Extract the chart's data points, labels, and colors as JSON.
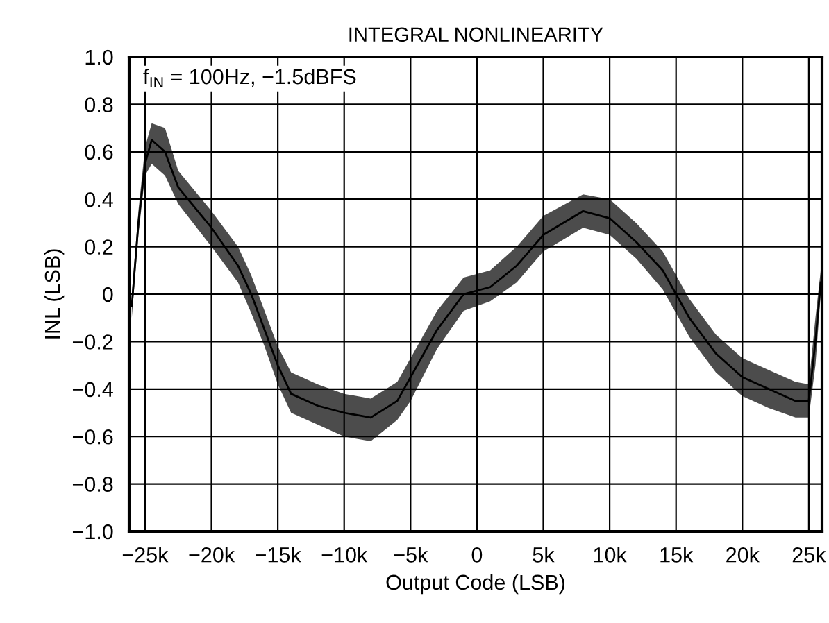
{
  "chart_data": {
    "type": "line",
    "title": "INTEGRAL NONLINEARITY",
    "xlabel": "Output Code (LSB)",
    "ylabel": "INL (LSB)",
    "annotations": [
      "f$_{IN}$ = 100Hz, −1.5dBFS"
    ],
    "series": [
      {
        "color": "#000000",
        "x": [
          -26000,
          -25500,
          -25000,
          -24500,
          -23500,
          -22500,
          -20000,
          -18000,
          -17000,
          -16000,
          -15000,
          -14000,
          -12000,
          -10000,
          -8000,
          -6000,
          -5000,
          -3000,
          -1000,
          1000,
          3000,
          5000,
          8000,
          10000,
          12000,
          14000,
          16000,
          18000,
          20000,
          22000,
          24000,
          25000,
          25500,
          25900
        ],
        "values": [
          -0.05,
          0.3,
          0.55,
          0.65,
          0.6,
          0.45,
          0.28,
          0.12,
          0.0,
          -0.15,
          -0.3,
          -0.42,
          -0.47,
          -0.5,
          -0.52,
          -0.45,
          -0.35,
          -0.15,
          0.0,
          0.03,
          0.12,
          0.25,
          0.35,
          0.32,
          0.22,
          0.1,
          -0.1,
          -0.25,
          -0.35,
          -0.4,
          -0.45,
          -0.45,
          -0.2,
          0.05
        ],
        "lower": [
          -0.1,
          0.25,
          0.5,
          0.55,
          0.5,
          0.38,
          0.2,
          0.05,
          -0.08,
          -0.22,
          -0.38,
          -0.5,
          -0.55,
          -0.6,
          -0.62,
          -0.53,
          -0.45,
          -0.23,
          -0.07,
          -0.03,
          0.05,
          0.18,
          0.28,
          0.25,
          0.15,
          0.02,
          -0.18,
          -0.33,
          -0.43,
          -0.48,
          -0.52,
          -0.52,
          -0.3,
          0.0
        ],
        "upper": [
          0.0,
          0.35,
          0.62,
          0.72,
          0.7,
          0.52,
          0.35,
          0.2,
          0.08,
          -0.07,
          -0.22,
          -0.33,
          -0.38,
          -0.42,
          -0.44,
          -0.37,
          -0.27,
          -0.07,
          0.07,
          0.1,
          0.2,
          0.33,
          0.42,
          0.4,
          0.3,
          0.18,
          -0.02,
          -0.17,
          -0.27,
          -0.32,
          -0.37,
          -0.38,
          -0.1,
          0.1
        ]
      }
    ],
    "xlim": [
      -26200,
      26000
    ],
    "ylim": [
      -1.0,
      1.0
    ],
    "xticks": [
      {
        "value": -25000,
        "label": "−25k"
      },
      {
        "value": -20000,
        "label": "−20k"
      },
      {
        "value": -15000,
        "label": "−15k"
      },
      {
        "value": -10000,
        "label": "−10k"
      },
      {
        "value": -5000,
        "label": "−5k"
      },
      0,
      {
        "value": 5000,
        "label": "5k"
      },
      {
        "value": 10000,
        "label": "10k"
      },
      {
        "value": 15000,
        "label": "15k"
      },
      {
        "value": 20000,
        "label": "20k"
      },
      {
        "value": 25000,
        "label": "25k"
      }
    ],
    "yticks": [
      {
        "value": 1.0,
        "label": "1.0"
      },
      0.8,
      0.6,
      0.4,
      0.2,
      0,
      {
        "value": -0.2,
        "label": "−0.2"
      },
      {
        "value": -0.4,
        "label": "−0.4"
      },
      {
        "value": -0.6,
        "label": "−0.6"
      },
      {
        "value": -0.8,
        "label": "−0.8"
      },
      {
        "value": -1.0,
        "label": "−1.0"
      }
    ],
    "grid": true
  }
}
